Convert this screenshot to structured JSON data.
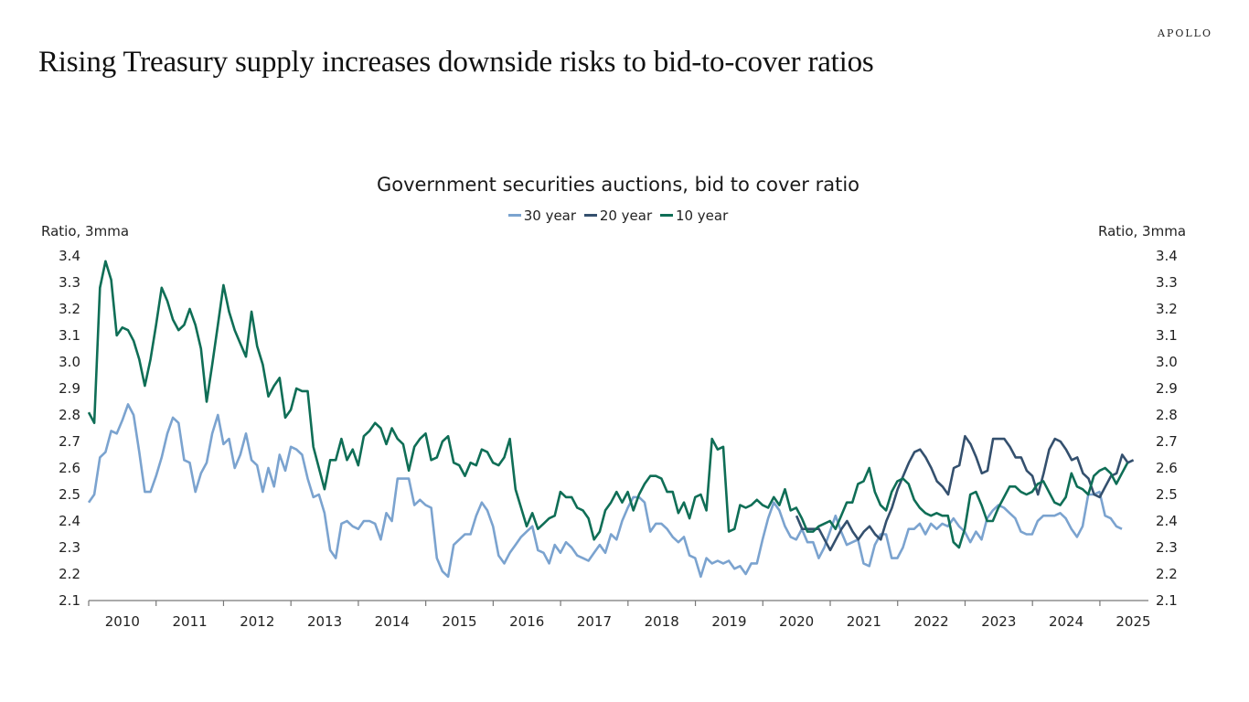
{
  "brand": "APOLLO",
  "headline": "Rising Treasury supply increases downside risks to bid-to-cover ratios",
  "chart_data": {
    "type": "line",
    "title": "Government securities auctions, bid to cover ratio",
    "ylabel_left": "Ratio, 3mma",
    "ylabel_right": "Ratio, 3mma",
    "xlabel": "",
    "ylim": [
      2.1,
      3.4
    ],
    "yticks": [
      "3.4",
      "3.3",
      "3.2",
      "3.1",
      "3.0",
      "2.9",
      "2.8",
      "2.7",
      "2.6",
      "2.5",
      "2.4",
      "2.3",
      "2.2",
      "2.1"
    ],
    "xlim": [
      2010.0,
      2025.72
    ],
    "xticks": [
      "2010",
      "2011",
      "2012",
      "2013",
      "2014",
      "2015",
      "2016",
      "2017",
      "2018",
      "2019",
      "2020",
      "2021",
      "2022",
      "2023",
      "2024",
      "2025"
    ],
    "grid": false,
    "legend_position": "top-center",
    "series": [
      {
        "name": "30 year",
        "color": "#7ba3cf",
        "x_start": 2010.0,
        "step": 0.0833,
        "values": [
          2.47,
          2.5,
          2.64,
          2.66,
          2.74,
          2.73,
          2.78,
          2.84,
          2.8,
          2.66,
          2.51,
          2.51,
          2.57,
          2.64,
          2.73,
          2.79,
          2.77,
          2.63,
          2.62,
          2.51,
          2.58,
          2.62,
          2.73,
          2.8,
          2.69,
          2.71,
          2.6,
          2.65,
          2.73,
          2.63,
          2.61,
          2.51,
          2.6,
          2.53,
          2.65,
          2.59,
          2.68,
          2.67,
          2.65,
          2.56,
          2.49,
          2.5,
          2.43,
          2.29,
          2.26,
          2.39,
          2.4,
          2.38,
          2.37,
          2.4,
          2.4,
          2.39,
          2.33,
          2.43,
          2.4,
          2.56,
          2.56,
          2.56,
          2.46,
          2.48,
          2.46,
          2.45,
          2.26,
          2.21,
          2.19,
          2.31,
          2.33,
          2.35,
          2.35,
          2.42,
          2.47,
          2.44,
          2.38,
          2.27,
          2.24,
          2.28,
          2.31,
          2.34,
          2.36,
          2.38,
          2.29,
          2.28,
          2.24,
          2.31,
          2.28,
          2.32,
          2.3,
          2.27,
          2.26,
          2.25,
          2.28,
          2.31,
          2.28,
          2.35,
          2.33,
          2.4,
          2.45,
          2.49,
          2.49,
          2.47,
          2.36,
          2.39,
          2.39,
          2.37,
          2.34,
          2.32,
          2.34,
          2.27,
          2.26,
          2.19,
          2.26,
          2.24,
          2.25,
          2.24,
          2.25,
          2.22,
          2.23,
          2.2,
          2.24,
          2.24,
          2.33,
          2.41,
          2.47,
          2.44,
          2.38,
          2.34,
          2.33,
          2.37,
          2.32,
          2.32,
          2.26,
          2.3,
          2.36,
          2.42,
          2.36,
          2.31,
          2.32,
          2.33,
          2.24,
          2.23,
          2.31,
          2.35,
          2.35,
          2.26,
          2.26,
          2.3,
          2.37,
          2.37,
          2.39,
          2.35,
          2.39,
          2.37,
          2.39,
          2.38,
          2.41,
          2.38,
          2.36,
          2.32,
          2.36,
          2.33,
          2.41,
          2.44,
          2.46,
          2.45,
          2.43,
          2.41,
          2.36,
          2.35,
          2.35,
          2.4,
          2.42,
          2.42,
          2.42,
          2.43,
          2.41,
          2.37,
          2.34,
          2.38,
          2.5,
          2.5,
          2.51,
          2.42,
          2.41,
          2.38,
          2.37
        ]
      },
      {
        "name": "20 year",
        "color": "#34506e",
        "x_start": 2020.5,
        "step": 0.0833,
        "values": [
          2.42,
          2.37,
          2.37,
          2.37,
          2.37,
          2.33,
          2.29,
          2.33,
          2.37,
          2.4,
          2.36,
          2.33,
          2.36,
          2.38,
          2.35,
          2.33,
          2.4,
          2.45,
          2.52,
          2.57,
          2.62,
          2.66,
          2.67,
          2.64,
          2.6,
          2.55,
          2.53,
          2.5,
          2.6,
          2.61,
          2.72,
          2.69,
          2.64,
          2.58,
          2.59,
          2.71,
          2.71,
          2.71,
          2.68,
          2.64,
          2.64,
          2.59,
          2.57,
          2.5,
          2.58,
          2.67,
          2.71,
          2.7,
          2.67,
          2.63,
          2.64,
          2.58,
          2.56,
          2.5,
          2.49,
          2.53,
          2.57,
          2.58,
          2.65,
          2.62,
          2.63
        ]
      },
      {
        "name": "10 year",
        "color": "#0f6e56",
        "x_start": 2010.0,
        "step": 0.0833,
        "values": [
          2.81,
          2.77,
          3.28,
          3.38,
          3.31,
          3.1,
          3.13,
          3.12,
          3.08,
          3.01,
          2.91,
          3.01,
          3.14,
          3.28,
          3.23,
          3.16,
          3.12,
          3.14,
          3.2,
          3.14,
          3.05,
          2.85,
          2.99,
          3.14,
          3.29,
          3.19,
          3.12,
          3.07,
          3.02,
          3.19,
          3.06,
          2.99,
          2.87,
          2.91,
          2.94,
          2.79,
          2.82,
          2.9,
          2.89,
          2.89,
          2.68,
          2.6,
          2.52,
          2.63,
          2.63,
          2.71,
          2.63,
          2.67,
          2.61,
          2.72,
          2.74,
          2.77,
          2.75,
          2.69,
          2.75,
          2.71,
          2.69,
          2.59,
          2.68,
          2.71,
          2.73,
          2.63,
          2.64,
          2.7,
          2.72,
          2.62,
          2.61,
          2.57,
          2.62,
          2.61,
          2.67,
          2.66,
          2.62,
          2.61,
          2.64,
          2.71,
          2.52,
          2.45,
          2.38,
          2.43,
          2.37,
          2.39,
          2.41,
          2.42,
          2.51,
          2.49,
          2.49,
          2.45,
          2.44,
          2.41,
          2.33,
          2.36,
          2.44,
          2.47,
          2.51,
          2.47,
          2.51,
          2.44,
          2.5,
          2.54,
          2.57,
          2.57,
          2.56,
          2.51,
          2.51,
          2.43,
          2.47,
          2.41,
          2.49,
          2.5,
          2.44,
          2.71,
          2.67,
          2.68,
          2.36,
          2.37,
          2.46,
          2.45,
          2.46,
          2.48,
          2.46,
          2.45,
          2.49,
          2.46,
          2.52,
          2.44,
          2.45,
          2.41,
          2.36,
          2.36,
          2.38,
          2.39,
          2.4,
          2.37,
          2.42,
          2.47,
          2.47,
          2.54,
          2.55,
          2.6,
          2.51,
          2.46,
          2.44,
          2.51,
          2.55,
          2.56,
          2.54,
          2.48,
          2.45,
          2.43,
          2.42,
          2.43,
          2.42,
          2.42,
          2.32,
          2.3,
          2.37,
          2.5,
          2.51,
          2.46,
          2.4,
          2.4,
          2.45,
          2.49,
          2.53,
          2.53,
          2.51,
          2.5,
          2.51,
          2.54,
          2.55,
          2.51,
          2.47,
          2.46,
          2.49,
          2.58,
          2.53,
          2.52,
          2.5,
          2.57,
          2.59,
          2.6,
          2.58,
          2.54,
          2.58,
          2.62
        ]
      }
    ]
  }
}
